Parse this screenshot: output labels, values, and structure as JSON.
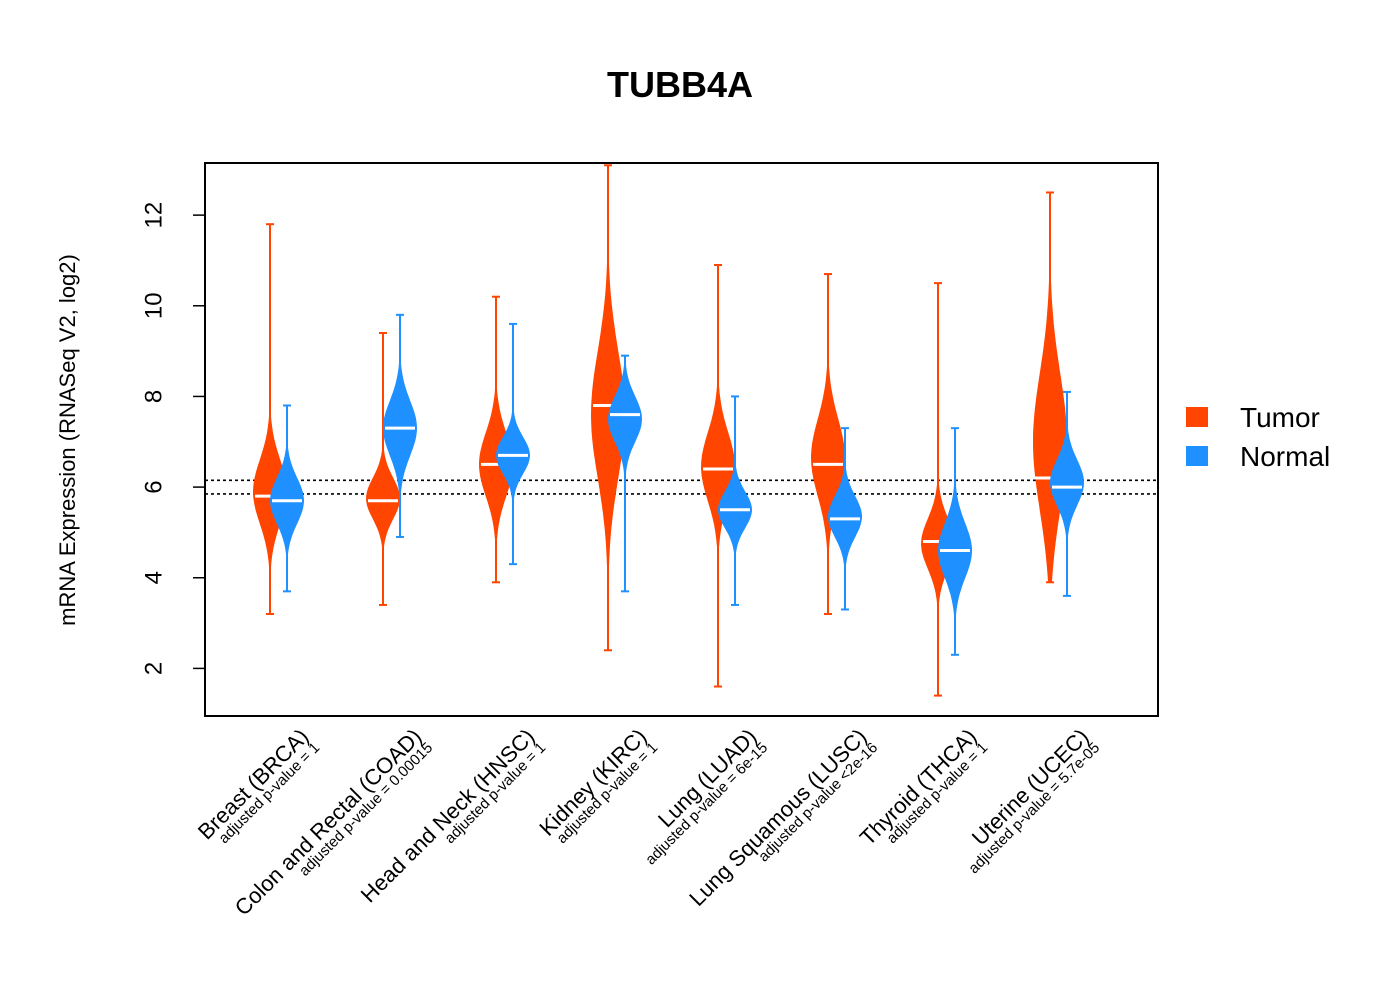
{
  "chart_data": {
    "type": "violin",
    "title": "TUBB4A",
    "xlabel": "",
    "ylabel": "mRNA Expression (RNASeq V2, log2)",
    "ylim": [
      0.95,
      13.15
    ],
    "yticks": [
      2,
      4,
      6,
      8,
      10,
      12
    ],
    "reference_lines": [
      5.85,
      6.15
    ],
    "categories": [
      {
        "label": "Breast (BRCA)",
        "pvalue": "adjusted p-value = 1"
      },
      {
        "label": "Colon and Rectal (COAD)",
        "pvalue": "adjusted p-value = 0.00015"
      },
      {
        "label": "Head and Neck (HNSC)",
        "pvalue": "adjusted p-value = 1"
      },
      {
        "label": "Kidney (KIRC)",
        "pvalue": "adjusted p-value = 1"
      },
      {
        "label": "Lung (LUAD)",
        "pvalue": "adjusted p-value = 6e-15"
      },
      {
        "label": "Lung Squamous (LUSC)",
        "pvalue": "adjusted p-value <2e-16"
      },
      {
        "label": "Thyroid (THCA)",
        "pvalue": "adjusted p-value = 1"
      },
      {
        "label": "Uterine (UCEC)",
        "pvalue": "adjusted p-value = 5.7e-05"
      }
    ],
    "series": [
      {
        "name": "Tumor",
        "color": "#ff4500",
        "groups": [
          {
            "min": 3.2,
            "max": 11.8,
            "median": 5.8,
            "q1": 5.2,
            "q3": 6.6
          },
          {
            "min": 3.4,
            "max": 9.4,
            "median": 5.7,
            "q1": 5.3,
            "q3": 6.2
          },
          {
            "min": 3.9,
            "max": 10.2,
            "median": 6.5,
            "q1": 5.8,
            "q3": 7.2
          },
          {
            "min": 2.4,
            "max": 13.1,
            "median": 7.8,
            "q1": 6.2,
            "q3": 9.0
          },
          {
            "min": 1.6,
            "max": 10.9,
            "median": 6.4,
            "q1": 5.7,
            "q3": 7.2
          },
          {
            "min": 3.2,
            "max": 10.7,
            "median": 6.5,
            "q1": 5.8,
            "q3": 7.5
          },
          {
            "min": 1.4,
            "max": 10.5,
            "median": 4.8,
            "q1": 4.2,
            "q3": 5.3
          },
          {
            "min": 3.9,
            "max": 12.5,
            "median": 6.2,
            "q1": 5.5,
            "q3": 8.5
          }
        ]
      },
      {
        "name": "Normal",
        "color": "#1e90ff",
        "groups": [
          {
            "min": 3.7,
            "max": 7.8,
            "median": 5.7,
            "q1": 5.2,
            "q3": 6.2
          },
          {
            "min": 4.9,
            "max": 9.8,
            "median": 7.3,
            "q1": 6.7,
            "q3": 7.9
          },
          {
            "min": 4.3,
            "max": 9.6,
            "median": 6.7,
            "q1": 6.3,
            "q3": 7.1
          },
          {
            "min": 3.7,
            "max": 8.9,
            "median": 7.6,
            "q1": 7.0,
            "q3": 8.0
          },
          {
            "min": 3.4,
            "max": 8.0,
            "median": 5.5,
            "q1": 5.1,
            "q3": 5.9
          },
          {
            "min": 3.3,
            "max": 7.3,
            "median": 5.3,
            "q1": 4.9,
            "q3": 5.8
          },
          {
            "min": 2.3,
            "max": 7.3,
            "median": 4.6,
            "q1": 4.0,
            "q3": 5.2
          },
          {
            "min": 3.6,
            "max": 8.1,
            "median": 6.0,
            "q1": 5.6,
            "q3": 6.6
          }
        ]
      }
    ],
    "legend": {
      "placement": "right",
      "entries": [
        "Tumor",
        "Normal"
      ]
    }
  }
}
